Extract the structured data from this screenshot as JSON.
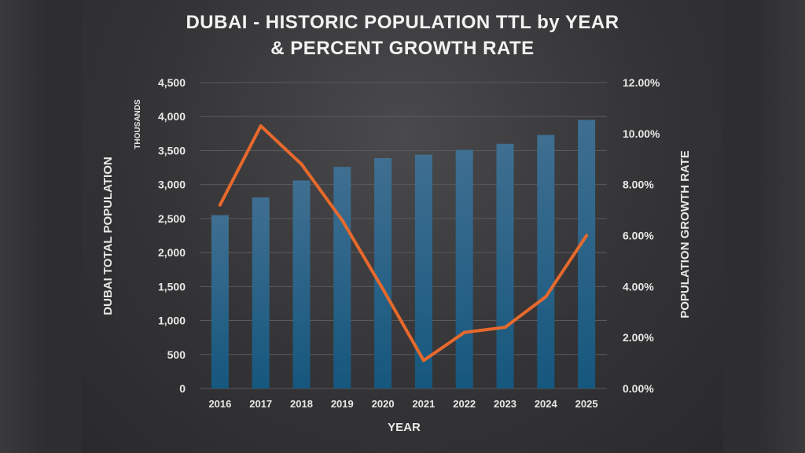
{
  "chart_data": {
    "type": "bar+line",
    "title_lines": [
      "DUBAI - HISTORIC POPULATION TTL by YEAR",
      "& PERCENT GROWTH RATE"
    ],
    "xlabel": "YEAR",
    "ylabel_left": "DUBAI TOTAL POPULATION",
    "ylabel_left_units": "THOUSANDS",
    "ylabel_right": "POPULATION GROWTH RATE",
    "categories": [
      "2016",
      "2017",
      "2018",
      "2019",
      "2020",
      "2021",
      "2022",
      "2023",
      "2024",
      "2025"
    ],
    "series": [
      {
        "type": "bar",
        "axis": "left",
        "values": [
          2550,
          2810,
          3060,
          3260,
          3390,
          3440,
          3510,
          3600,
          3730,
          3950
        ]
      },
      {
        "type": "line",
        "axis": "right",
        "values": [
          7.2,
          10.3,
          8.8,
          6.6,
          3.9,
          1.1,
          2.2,
          2.4,
          3.6,
          6.0
        ]
      }
    ],
    "ylim_left": [
      0,
      4500
    ],
    "yticks_left": [
      "0",
      "500",
      "1,000",
      "1,500",
      "2,000",
      "2,500",
      "3,000",
      "3,500",
      "4,000",
      "4,500"
    ],
    "ylim_right": [
      0,
      12
    ],
    "yticks_right": [
      "0.00%",
      "2.00%",
      "4.00%",
      "6.00%",
      "8.00%",
      "10.00%",
      "12.00%"
    ],
    "grid": true,
    "colors": {
      "bar_top": "#3f6f91",
      "bar_bottom": "#16577e",
      "line": "#e8692c",
      "grid": "#5a5a5c",
      "text": "#e8e8e8"
    }
  }
}
